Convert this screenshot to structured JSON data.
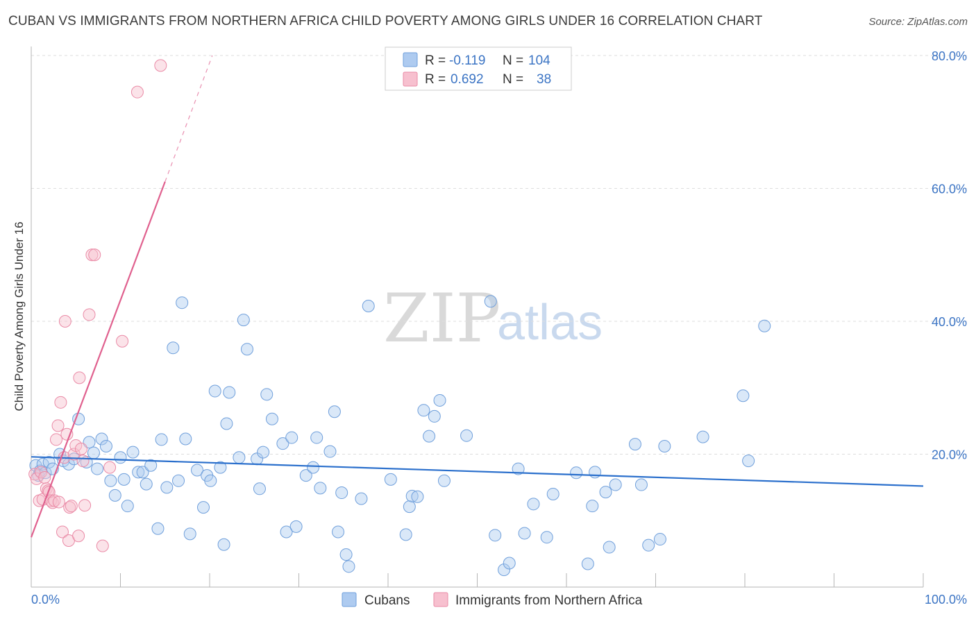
{
  "title": "CUBAN VS IMMIGRANTS FROM NORTHERN AFRICA CHILD POVERTY AMONG GIRLS UNDER 16 CORRELATION CHART",
  "source": "Source: ZipAtlas.com",
  "watermark": {
    "zip": "ZIP",
    "atlas": "atlas"
  },
  "colors": {
    "blue_fill": "#aecbf0",
    "blue_stroke": "#6f9fdb",
    "blue_line": "#2a6fcc",
    "pink_fill": "#f7c0cf",
    "pink_stroke": "#ea8aa6",
    "pink_line": "#e0608e",
    "axis_label": "#3b74c4",
    "grid": "#dddddd"
  },
  "legend": {
    "rows": [
      {
        "r_label": "R =",
        "r_value": "-0.119",
        "n_label": "N =",
        "n_value": "104",
        "color": "blue"
      },
      {
        "r_label": "R =",
        "r_value": "0.692",
        "n_label": "N =",
        "n_value": "38",
        "color": "pink"
      }
    ]
  },
  "bottom_legend": [
    {
      "label": "Cubans",
      "color": "blue"
    },
    {
      "label": "Immigrants from Northern Africa",
      "color": "pink"
    }
  ],
  "chart_data": {
    "type": "scatter",
    "title": "CUBAN VS IMMIGRANTS FROM NORTHERN AFRICA CHILD POVERTY AMONG GIRLS UNDER 16 CORRELATION CHART",
    "xlabel": "",
    "ylabel": "Child Poverty Among Girls Under 16",
    "xlim": [
      0,
      100
    ],
    "ylim": [
      0,
      80
    ],
    "x_tick_labels": [
      "0.0%",
      "100.0%"
    ],
    "y_tick_labels": [
      "20.0%",
      "40.0%",
      "60.0%",
      "80.0%"
    ],
    "y_ticks": [
      20,
      40,
      60,
      80
    ],
    "grid": true,
    "legend_position": "top-center",
    "series": [
      {
        "name": "Cubans",
        "color": "blue",
        "trend": {
          "x": [
            0,
            100
          ],
          "y": [
            19.6,
            15.2
          ]
        },
        "points": [
          [
            0.5,
            18.3
          ],
          [
            0.8,
            16.8
          ],
          [
            1.0,
            17.5
          ],
          [
            1.3,
            18.5
          ],
          [
            1.6,
            17.2
          ],
          [
            2.0,
            18.8
          ],
          [
            2.4,
            17.8
          ],
          [
            3.2,
            20.0
          ],
          [
            3.6,
            19.0
          ],
          [
            4.2,
            18.5
          ],
          [
            4.8,
            19.3
          ],
          [
            5.3,
            25.3
          ],
          [
            6.2,
            18.8
          ],
          [
            6.5,
            21.8
          ],
          [
            7.0,
            20.2
          ],
          [
            7.4,
            17.8
          ],
          [
            7.9,
            22.3
          ],
          [
            8.4,
            21.2
          ],
          [
            8.9,
            16.0
          ],
          [
            9.4,
            13.8
          ],
          [
            10.0,
            19.5
          ],
          [
            10.4,
            16.2
          ],
          [
            10.8,
            12.2
          ],
          [
            11.4,
            20.3
          ],
          [
            12.0,
            17.3
          ],
          [
            12.5,
            17.3
          ],
          [
            12.9,
            15.5
          ],
          [
            13.4,
            18.3
          ],
          [
            14.2,
            8.8
          ],
          [
            14.6,
            22.2
          ],
          [
            15.2,
            15.0
          ],
          [
            15.9,
            36.0
          ],
          [
            16.5,
            16.0
          ],
          [
            16.9,
            42.8
          ],
          [
            17.3,
            22.3
          ],
          [
            17.8,
            8.0
          ],
          [
            18.6,
            17.6
          ],
          [
            19.3,
            12.0
          ],
          [
            19.7,
            16.8
          ],
          [
            20.1,
            16.0
          ],
          [
            20.6,
            29.5
          ],
          [
            21.2,
            18.0
          ],
          [
            21.6,
            6.4
          ],
          [
            21.9,
            24.6
          ],
          [
            22.2,
            29.3
          ],
          [
            23.3,
            19.5
          ],
          [
            23.8,
            40.2
          ],
          [
            24.2,
            35.8
          ],
          [
            25.3,
            19.3
          ],
          [
            25.6,
            14.8
          ],
          [
            26.0,
            20.3
          ],
          [
            26.4,
            29.0
          ],
          [
            27.0,
            25.3
          ],
          [
            28.2,
            21.6
          ],
          [
            28.6,
            8.3
          ],
          [
            29.2,
            22.5
          ],
          [
            29.7,
            9.1
          ],
          [
            30.8,
            16.8
          ],
          [
            31.6,
            18.0
          ],
          [
            32.0,
            22.5
          ],
          [
            32.4,
            14.9
          ],
          [
            33.5,
            20.4
          ],
          [
            34.0,
            26.4
          ],
          [
            34.4,
            8.3
          ],
          [
            34.8,
            14.2
          ],
          [
            35.3,
            4.9
          ],
          [
            35.6,
            3.1
          ],
          [
            37.0,
            13.3
          ],
          [
            37.8,
            42.3
          ],
          [
            40.3,
            16.2
          ],
          [
            42.0,
            7.9
          ],
          [
            42.4,
            12.1
          ],
          [
            42.7,
            13.7
          ],
          [
            43.3,
            13.6
          ],
          [
            44.0,
            26.6
          ],
          [
            44.6,
            22.7
          ],
          [
            45.2,
            25.7
          ],
          [
            45.8,
            28.1
          ],
          [
            46.3,
            16.0
          ],
          [
            48.8,
            22.8
          ],
          [
            51.5,
            43.0
          ],
          [
            52.0,
            7.8
          ],
          [
            53.0,
            2.6
          ],
          [
            53.6,
            3.6
          ],
          [
            54.6,
            17.8
          ],
          [
            55.3,
            8.1
          ],
          [
            56.3,
            12.5
          ],
          [
            57.8,
            7.5
          ],
          [
            58.5,
            14.0
          ],
          [
            61.1,
            17.2
          ],
          [
            62.4,
            3.5
          ],
          [
            62.9,
            12.2
          ],
          [
            63.2,
            17.3
          ],
          [
            64.4,
            14.3
          ],
          [
            64.8,
            6.0
          ],
          [
            65.5,
            15.4
          ],
          [
            67.7,
            21.5
          ],
          [
            68.4,
            15.4
          ],
          [
            69.2,
            6.3
          ],
          [
            70.5,
            7.2
          ],
          [
            71.0,
            21.2
          ],
          [
            75.3,
            22.6
          ],
          [
            79.8,
            28.8
          ],
          [
            80.4,
            19.0
          ],
          [
            82.2,
            39.3
          ]
        ]
      },
      {
        "name": "Immigrants from Northern Africa",
        "color": "pink",
        "trend": {
          "x": [
            0,
            15
          ],
          "y": [
            7.5,
            61.0
          ],
          "dashed_to": {
            "x": 20.3,
            "y": 80
          }
        },
        "points": [
          [
            0.4,
            17.0
          ],
          [
            0.6,
            16.3
          ],
          [
            0.9,
            13.0
          ],
          [
            1.1,
            17.3
          ],
          [
            1.3,
            13.2
          ],
          [
            1.5,
            16.5
          ],
          [
            1.7,
            14.8
          ],
          [
            1.9,
            14.5
          ],
          [
            2.0,
            14.3
          ],
          [
            2.2,
            13.0
          ],
          [
            2.4,
            12.7
          ],
          [
            2.6,
            13.0
          ],
          [
            2.8,
            22.2
          ],
          [
            3.0,
            24.3
          ],
          [
            3.1,
            12.8
          ],
          [
            3.3,
            27.8
          ],
          [
            3.5,
            8.3
          ],
          [
            3.7,
            19.5
          ],
          [
            3.8,
            40.0
          ],
          [
            4.0,
            23.0
          ],
          [
            4.2,
            7.0
          ],
          [
            4.3,
            12.0
          ],
          [
            4.5,
            12.2
          ],
          [
            4.8,
            20.0
          ],
          [
            5.0,
            21.3
          ],
          [
            5.3,
            7.7
          ],
          [
            5.4,
            31.5
          ],
          [
            5.6,
            20.8
          ],
          [
            5.8,
            19.0
          ],
          [
            6.0,
            12.3
          ],
          [
            6.5,
            41.0
          ],
          [
            6.8,
            50.0
          ],
          [
            7.1,
            50.0
          ],
          [
            8.0,
            6.2
          ],
          [
            8.8,
            18.0
          ],
          [
            10.2,
            37.0
          ],
          [
            11.9,
            74.5
          ],
          [
            14.5,
            78.5
          ]
        ]
      }
    ]
  }
}
